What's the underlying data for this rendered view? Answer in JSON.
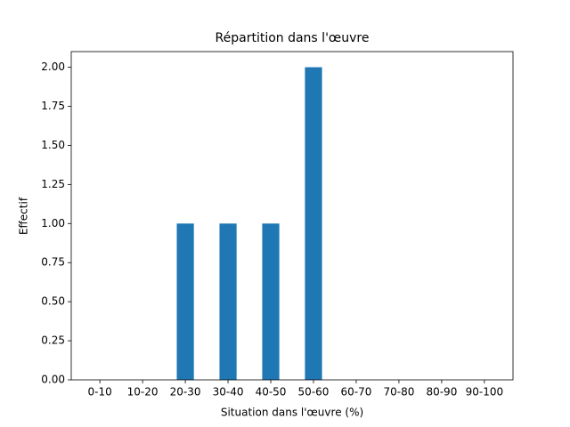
{
  "chart_data": {
    "type": "bar",
    "title": "Répartition dans l'œuvre",
    "x_label": "Situation dans l'œuvre (%)",
    "y_label": "Effectif",
    "categories": [
      "0-10",
      "10-20",
      "20-30",
      "30-40",
      "40-50",
      "50-60",
      "60-70",
      "70-80",
      "80-90",
      "90-100"
    ],
    "values": [
      0,
      0,
      1,
      1,
      1,
      2,
      0,
      0,
      0,
      0
    ],
    "color": "#1f77b4",
    "ylim": [
      0,
      2.1
    ],
    "yticks": [
      {
        "value": 0,
        "label": "0.00"
      },
      {
        "value": 0.25,
        "label": "0.25"
      },
      {
        "value": 0.5,
        "label": "0.50"
      },
      {
        "value": 0.75,
        "label": "0.75"
      },
      {
        "value": 1,
        "label": "1.00"
      },
      {
        "value": 1.25,
        "label": "1.25"
      },
      {
        "value": 1.5,
        "label": "1.50"
      },
      {
        "value": 1.75,
        "label": "1.75"
      },
      {
        "value": 2,
        "label": "2.00"
      }
    ],
    "grid": false
  }
}
